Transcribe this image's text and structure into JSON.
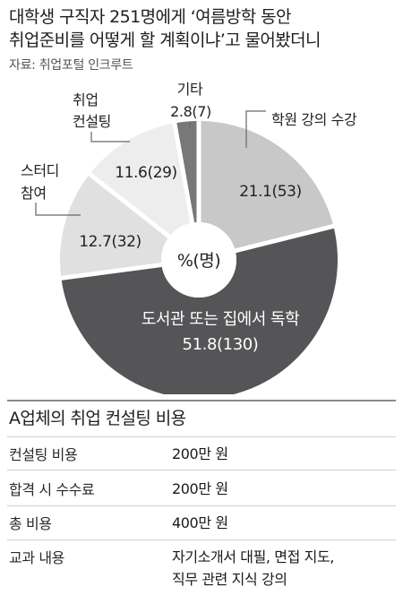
{
  "title_line1": "대학생 구직자 251명에게 ‘여름방학 동안",
  "title_line2": "취업준비를 어떻게 할 계획이냐’고  물어봤더니",
  "source": "자료: 취업포털 인크루트",
  "chart_data": {
    "type": "pie",
    "style": "donut",
    "center_label": "%(명)",
    "start_angle_deg": 0,
    "direction": "clockwise",
    "slices": [
      {
        "label": "학원 강의 수강",
        "value": 21.1,
        "count": 53,
        "value_text": "21.1(53)",
        "color": "#c8c8c8",
        "text_color": "#222222"
      },
      {
        "label": "도서관 또는 집에서 독학",
        "value": 51.8,
        "count": 130,
        "value_text": "51.8(130)",
        "color": "#555557",
        "text_color": "#ffffff"
      },
      {
        "label": "스터디 참여",
        "value": 12.7,
        "count": 32,
        "value_text": "12.7(32)",
        "color": "#e0e0e0",
        "text_color": "#222222"
      },
      {
        "label": "취업 컨설팅",
        "value": 11.6,
        "count": 29,
        "value_text": "11.6(29)",
        "color": "#ededed",
        "text_color": "#222222"
      },
      {
        "label": "기타",
        "value": 2.8,
        "count": 7,
        "value_text": "2.8(7)",
        "color": "#78787a",
        "text_color": "#222222"
      }
    ]
  },
  "table": {
    "title": "A업체의 취업 컨설팅 비용",
    "rows": [
      {
        "key": "컨설팅 비용",
        "value": "200만 원"
      },
      {
        "key": "합격 시 수수료",
        "value": "200만 원"
      },
      {
        "key": "총 비용",
        "value": "400만 원"
      },
      {
        "key": "교과 내용",
        "value": "자기소개서 대필, 면접 지도,",
        "value2": "직무 관련 지식 강의"
      }
    ]
  }
}
